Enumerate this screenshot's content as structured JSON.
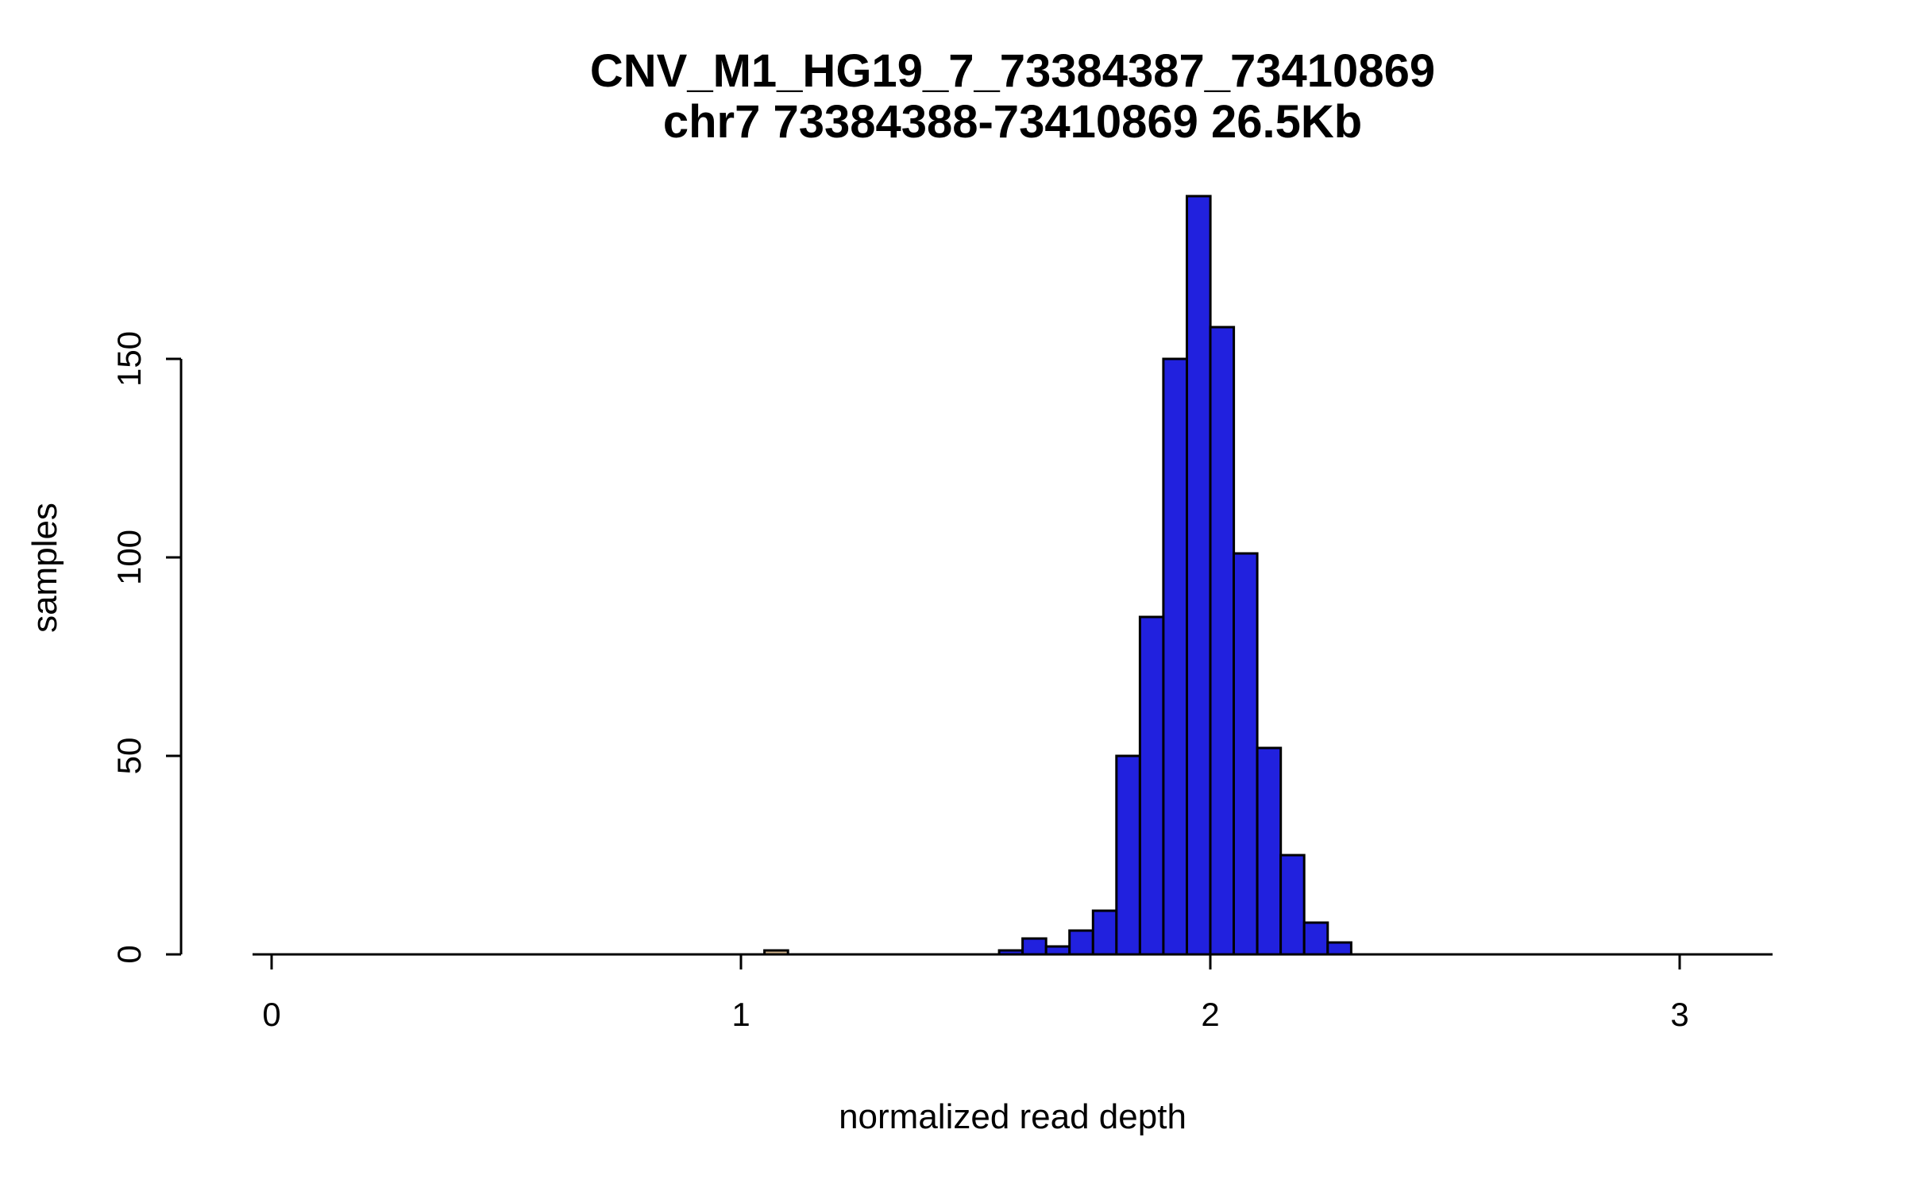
{
  "figure": {
    "title": "CNV_M1_HG19_7_73384387_73410869",
    "subtitle": "chr7 73384388-73410869 26.5Kb",
    "xlabel": "normalized read depth",
    "ylabel": "samples"
  },
  "chart_data": {
    "type": "bar",
    "subtype": "histogram",
    "title": "CNV_M1_HG19_7_73384387_73410869",
    "subtitle": "chr7 73384388-73410869 26.5Kb",
    "xlabel": "normalized read depth",
    "ylabel": "samples",
    "x_ticks": [
      0,
      1,
      2,
      3
    ],
    "y_ticks": [
      0,
      50,
      100,
      150
    ],
    "xlim": [
      -0.04,
      3.2
    ],
    "ylim": [
      0,
      191
    ],
    "bin_width": 0.05,
    "bar_color": "#2121DE",
    "highlight_color": "#D2B48C",
    "border_color": "#000000",
    "grid": false,
    "legend": false,
    "bins": [
      {
        "x0": 1.05,
        "count": 1,
        "highlight": true
      },
      {
        "x0": 1.55,
        "count": 1,
        "highlight": false
      },
      {
        "x0": 1.6,
        "count": 4,
        "highlight": false
      },
      {
        "x0": 1.65,
        "count": 2,
        "highlight": false
      },
      {
        "x0": 1.7,
        "count": 6,
        "highlight": false
      },
      {
        "x0": 1.75,
        "count": 11,
        "highlight": false
      },
      {
        "x0": 1.8,
        "count": 50,
        "highlight": false
      },
      {
        "x0": 1.85,
        "count": 85,
        "highlight": false
      },
      {
        "x0": 1.9,
        "count": 150,
        "highlight": false
      },
      {
        "x0": 1.95,
        "count": 191,
        "highlight": false
      },
      {
        "x0": 2.0,
        "count": 158,
        "highlight": false
      },
      {
        "x0": 2.05,
        "count": 101,
        "highlight": false
      },
      {
        "x0": 2.1,
        "count": 52,
        "highlight": false
      },
      {
        "x0": 2.15,
        "count": 25,
        "highlight": false
      },
      {
        "x0": 2.2,
        "count": 8,
        "highlight": false
      },
      {
        "x0": 2.25,
        "count": 3,
        "highlight": false
      }
    ]
  }
}
